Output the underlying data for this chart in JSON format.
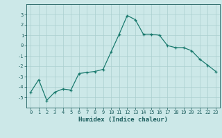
{
  "x": [
    0,
    1,
    2,
    3,
    4,
    5,
    6,
    7,
    8,
    9,
    10,
    11,
    12,
    13,
    14,
    15,
    16,
    17,
    18,
    19,
    20,
    21,
    22,
    23
  ],
  "y": [
    -4.5,
    -3.3,
    -5.3,
    -4.5,
    -4.2,
    -4.3,
    -2.7,
    -2.6,
    -2.5,
    -2.3,
    -0.6,
    1.1,
    2.9,
    2.5,
    1.1,
    1.1,
    1.0,
    0.0,
    -0.2,
    -0.2,
    -0.5,
    -1.3,
    -1.9,
    -2.5
  ],
  "line_color": "#1a7a6e",
  "marker": "+",
  "marker_size": 3,
  "linewidth": 0.9,
  "xlabel": "Humidex (Indice chaleur)",
  "xlabel_fontsize": 6.5,
  "xlabel_color": "#1a5c5c",
  "ylim": [
    -6,
    4
  ],
  "xlim": [
    -0.5,
    23.5
  ],
  "yticks": [
    -5,
    -4,
    -3,
    -2,
    -1,
    0,
    1,
    2,
    3
  ],
  "xticks": [
    0,
    1,
    2,
    3,
    4,
    5,
    6,
    7,
    8,
    9,
    10,
    11,
    12,
    13,
    14,
    15,
    16,
    17,
    18,
    19,
    20,
    21,
    22,
    23
  ],
  "bg_color": "#cce8e8",
  "grid_color": "#aacfcf",
  "tick_color": "#1a5c5c",
  "tick_fontsize": 5.0,
  "fig_bg": "#cce8e8"
}
